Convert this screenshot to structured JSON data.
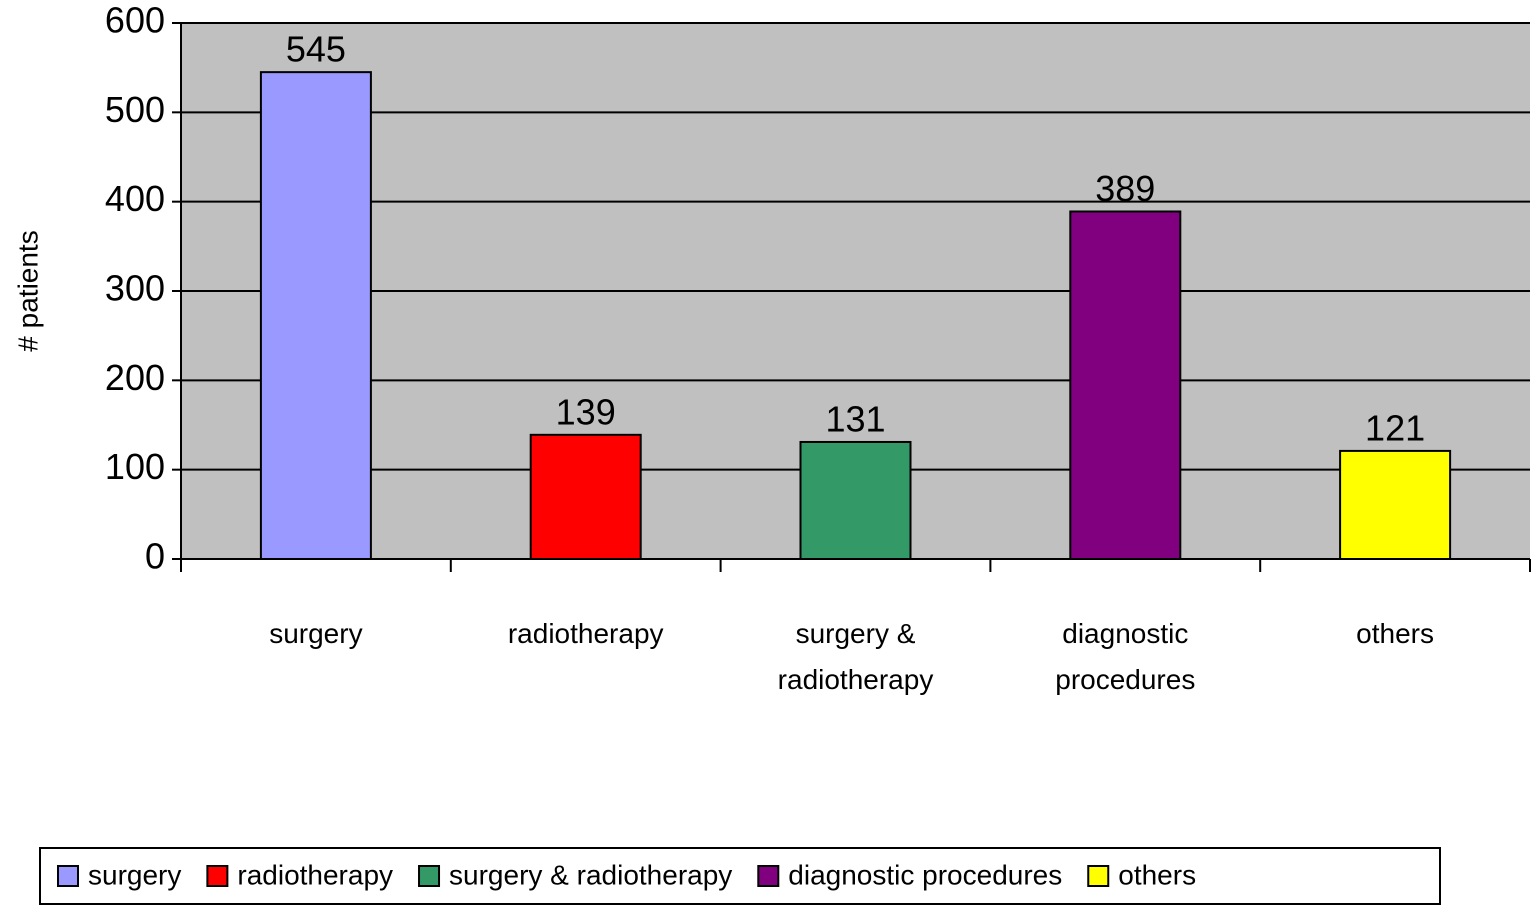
{
  "chart_data": {
    "type": "bar",
    "y_label": "# patients",
    "categories": [
      "surgery",
      "radiotherapy",
      "surgery & radiotherapy",
      "diagnostic procedures",
      "others"
    ],
    "values": [
      545,
      139,
      131,
      389,
      121
    ],
    "colors": [
      "#9999ff",
      "#ff0000",
      "#339966",
      "#800080",
      "#ffff00"
    ],
    "ylim": [
      0,
      600
    ],
    "yticks": [
      0,
      100,
      200,
      300,
      400,
      500,
      600
    ],
    "grid": true,
    "legend": "bottom"
  }
}
